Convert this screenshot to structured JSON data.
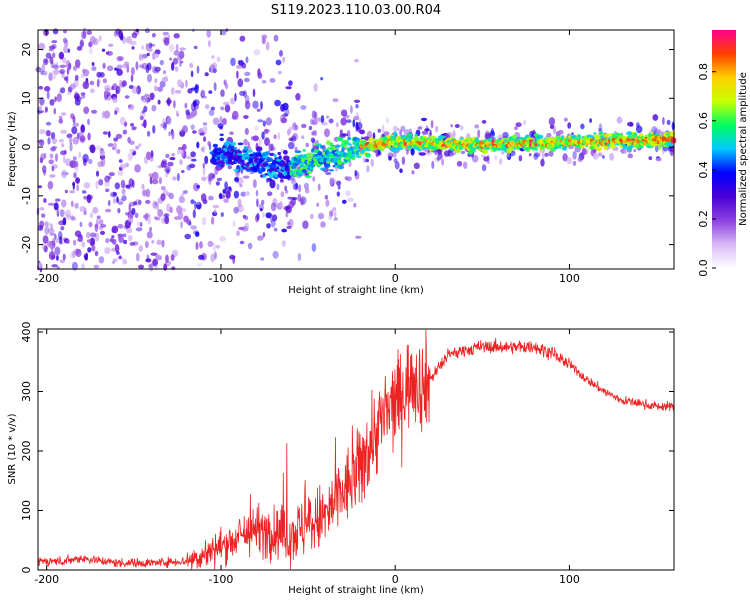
{
  "title": "S119.2023.110.03.00.R04",
  "chart_data": [
    {
      "type": "heatmap",
      "title": "S119.2023.110.03.00.R04",
      "xlabel": "Height of straight line (km)",
      "ylabel": "Frequency (Hz)",
      "xlim": [
        -205,
        160
      ],
      "ylim": [
        -25,
        24
      ],
      "x_ticks": [
        -200,
        -100,
        0,
        100
      ],
      "y_ticks": [
        -20,
        -10,
        0,
        10,
        20
      ],
      "grid": false,
      "colorbar": {
        "label": "Normalized spectral amplitude",
        "range": [
          0,
          0.97
        ],
        "ticks": [
          "0.0",
          "0.2",
          "0.4",
          "0.6",
          "0.8"
        ],
        "tick_values": [
          0.0,
          0.2,
          0.4,
          0.6,
          0.8
        ],
        "colors": [
          "#ffffff",
          "#d7b8f5",
          "#8c3fe0",
          "#4a00d6",
          "#0000ff",
          "#00c8ff",
          "#00ff60",
          "#c8ff00",
          "#ffd000",
          "#ff4000",
          "#ff0090"
        ]
      },
      "ridge": [
        {
          "x": -100,
          "y": -1
        },
        {
          "x": -80,
          "y": -3
        },
        {
          "x": -60,
          "y": -4
        },
        {
          "x": -40,
          "y": -2
        },
        {
          "x": -20,
          "y": 0
        },
        {
          "x": 0,
          "y": 1
        },
        {
          "x": 50,
          "y": 0.5
        },
        {
          "x": 100,
          "y": 1
        },
        {
          "x": 160,
          "y": 1.5
        }
      ]
    },
    {
      "type": "line",
      "xlabel": "Height of straight line (km)",
      "ylabel": "SNR (10 * v/v)",
      "xlim": [
        -205,
        160
      ],
      "ylim": [
        0,
        405
      ],
      "x_ticks": [
        -200,
        -100,
        0,
        100
      ],
      "y_ticks": [
        0,
        100,
        200,
        300,
        400
      ],
      "grid": false,
      "color": "#ee2222",
      "series": [
        {
          "x": [
            -205,
            -190,
            -180,
            -160,
            -140,
            -120,
            -110,
            -100,
            -90,
            -80,
            -70,
            -60,
            -50,
            -40,
            -30,
            -20,
            -15,
            -10,
            -5,
            0,
            5,
            10,
            15,
            20,
            30,
            40,
            50,
            60,
            70,
            80,
            90,
            100,
            110,
            120,
            130,
            140,
            150,
            160
          ],
          "values": [
            15,
            15,
            20,
            12,
            12,
            15,
            25,
            40,
            55,
            70,
            60,
            60,
            75,
            90,
            130,
            170,
            210,
            240,
            260,
            280,
            300,
            330,
            310,
            320,
            360,
            370,
            375,
            375,
            375,
            375,
            365,
            345,
            320,
            300,
            285,
            280,
            275,
            275
          ]
        }
      ]
    }
  ]
}
